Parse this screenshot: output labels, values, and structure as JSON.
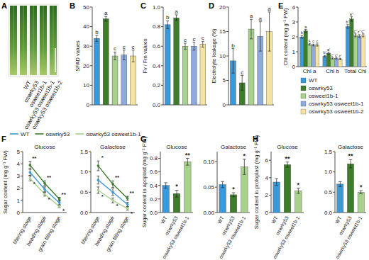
{
  "chart_data": [
    {
      "panel": "A",
      "type": "image",
      "categories": [
        "WT",
        "oswrky53",
        "osweet1b-1",
        "oswrky53 osweet1b-1",
        "oswrky53 osweet1b-2"
      ]
    },
    {
      "panel": "B",
      "type": "bar",
      "ylabel": "SPAD values",
      "values": [
        34,
        44,
        25,
        25.5,
        25
      ],
      "errors": [
        1.5,
        1.2,
        2,
        2.5,
        3
      ],
      "colors": [
        "#3a9ad9",
        "#3e7d2b",
        "#a9d18e",
        "#8faadc",
        "#f4e3a1"
      ],
      "letters": [
        "b",
        "a",
        "c",
        "c",
        "c"
      ],
      "ylim": [
        0,
        50
      ],
      "yticks": [
        0,
        10,
        20,
        30,
        40,
        50
      ],
      "tick_labels": "y"
    },
    {
      "panel": "C",
      "type": "bar",
      "ylabel": "Fv / Fm values",
      "values": [
        0.82,
        0.89,
        0.6,
        0.6,
        0.62
      ],
      "errors": [
        0.04,
        0.03,
        0.03,
        0.04,
        0.03
      ],
      "colors": [
        "#3a9ad9",
        "#3e7d2b",
        "#a9d18e",
        "#8faadc",
        "#f4e3a1"
      ],
      "letters": [
        "b",
        "a",
        "c",
        "c",
        "c"
      ],
      "ylim": [
        0,
        1
      ],
      "yticks": [
        {
          "value": 0,
          "label": "0.0"
        },
        0.2,
        0.4,
        0.6,
        0.8,
        {
          "value": 1,
          "label": "1.0"
        }
      ],
      "tick_labels": "y"
    },
    {
      "panel": "D",
      "type": "bar",
      "ylabel": "Electrolyte leakage (%)",
      "values": [
        9,
        4.5,
        15.5,
        14,
        15
      ],
      "errors": [
        2.5,
        1.5,
        2,
        3,
        4
      ],
      "colors": [
        "#3a9ad9",
        "#3e7d2b",
        "#a9d18e",
        "#8faadc",
        "#f4e3a1"
      ],
      "letters": [
        "b",
        "c",
        "a",
        "a",
        "a"
      ],
      "ylim": [
        0,
        20
      ],
      "yticks": [
        0,
        5,
        10,
        15,
        20
      ],
      "tick_labels": "y"
    },
    {
      "panel": "E",
      "type": "bar",
      "ylabel": "Chl content (mg g⁻¹ FW)",
      "categories": [
        "Chl a",
        "Chl b",
        "Total Chl"
      ],
      "series": [
        {
          "name": "WT",
          "color": "#3a9ad9",
          "values": [
            2.0,
            0.7,
            2.7
          ],
          "errors": [
            0.08,
            0.05,
            0.12
          ],
          "letters": [
            "b",
            "b'",
            "b''"
          ]
        },
        {
          "name": "oswrky53",
          "color": "#3e7d2b",
          "values": [
            2.4,
            0.9,
            3.2
          ],
          "errors": [
            0.1,
            0.06,
            0.15
          ],
          "letters": [
            "a",
            "a'",
            "a''"
          ]
        },
        {
          "name": "osweet1b-1",
          "color": "#a9d18e",
          "values": [
            1.5,
            0.55,
            2.1
          ],
          "errors": [
            0.06,
            0.04,
            0.1
          ],
          "letters": [
            "c",
            "c'",
            "c''"
          ]
        },
        {
          "name": "oswrky53 osweet1b-1",
          "color": "#8faadc",
          "values": [
            1.45,
            0.55,
            2.05
          ],
          "errors": [
            0.06,
            0.04,
            0.1
          ],
          "letters": [
            "c",
            "c'",
            "c''"
          ]
        },
        {
          "name": "oswrky53 osweet1b-2",
          "color": "#f4e3a1",
          "values": [
            1.45,
            0.5,
            2.1
          ],
          "errors": [
            0.07,
            0.04,
            0.1
          ],
          "letters": [
            "c",
            "c'",
            "c''"
          ]
        }
      ],
      "ylim": [
        0,
        4
      ],
      "yticks": [
        0,
        1,
        2,
        3,
        4
      ],
      "legend": "bottom"
    },
    {
      "panel": "F",
      "type": "line",
      "title": "Glucose",
      "ylabel": "Sugar content (mg g⁻¹ FW)",
      "categories": [
        "tillering stage",
        "heading stage",
        "grain filling stage"
      ],
      "series": [
        {
          "name": "WT",
          "color": "#3a9ad9",
          "values": [
            3.3,
            1.9,
            0.8
          ],
          "errors": [
            0.25,
            0.2,
            0.15
          ]
        },
        {
          "name": "oswrky53",
          "color": "#3e7d2b",
          "values": [
            3.9,
            2.4,
            1.1
          ],
          "errors": [
            0.3,
            0.2,
            0.15
          ],
          "significance": [
            "**",
            "**",
            "**"
          ]
        },
        {
          "name": "oswrky53 osweet1b-1",
          "color": "#a9d18e",
          "values": [
            2.8,
            1.5,
            0.5
          ],
          "errors": [
            0.2,
            0.15,
            0.1
          ],
          "significance": [
            "*",
            "*",
            "*"
          ]
        }
      ],
      "ylim": [
        0,
        5
      ],
      "yticks": [
        0,
        1,
        2,
        3,
        4,
        5
      ],
      "marker": "circle",
      "legend": "top"
    },
    {
      "type": "line",
      "title": "Galactose",
      "categories": [
        "tillering stage",
        "heading stage",
        "grain filling stage"
      ],
      "series": [
        {
          "color": "#3a9ad9",
          "values": [
            0.8,
            0.5,
            0.2
          ],
          "errors": [
            0.1,
            0.08,
            0.05
          ]
        },
        {
          "color": "#3e7d2b",
          "values": [
            1.15,
            0.7,
            0.35
          ],
          "errors": [
            0.12,
            0.08,
            0.05
          ],
          "significance": [
            "*",
            "**",
            "**"
          ]
        },
        {
          "color": "#a9d18e",
          "values": [
            0.55,
            0.3,
            0.1
          ],
          "errors": [
            0.08,
            0.06,
            0.04
          ],
          "significance": [
            "*",
            "*",
            "*"
          ]
        }
      ],
      "ylim": [
        0,
        1.5
      ],
      "yticks": [
        {
          "value": 0,
          "label": "0.0"
        },
        0.5,
        {
          "value": 1,
          "label": "1.0"
        },
        1.5
      ],
      "marker": "circle"
    },
    {
      "panel": "G",
      "type": "bar",
      "title": "Glucose",
      "ylabel": "Sugar content in apoplast (mg g⁻¹ FW)",
      "categories": [
        "WT",
        "oswrky53",
        "oswrky53 osweet1b-1"
      ],
      "values": [
        0.4,
        0.28,
        0.75
      ],
      "errors": [
        0.04,
        0.05,
        0.05
      ],
      "colors": [
        "#3a9ad9",
        "#3e7d2b",
        "#a9d18e"
      ],
      "significance": [
        null,
        "*",
        "**"
      ],
      "ylim": [
        0,
        0.9
      ],
      "yticks": [
        {
          "value": 0,
          "label": "0.0"
        },
        0.2,
        0.4,
        0.6,
        0.8
      ]
    },
    {
      "type": "bar",
      "title": "Galactose",
      "categories": [
        "WT",
        "oswrky53",
        "oswrky53 osweet1b-1"
      ],
      "values": [
        0.055,
        0.035,
        0.09
      ],
      "errors": [
        0.006,
        0.004,
        0.015
      ],
      "colors": [
        "#3a9ad9",
        "#3e7d2b",
        "#a9d18e"
      ],
      "significance": [
        null,
        "*",
        "*"
      ],
      "ylim": [
        0,
        0.12
      ],
      "yticks": [
        {
          "value": 0,
          "label": "0.00"
        },
        0.05,
        {
          "value": 0.1,
          "label": "0.10"
        }
      ]
    },
    {
      "panel": "H",
      "type": "bar",
      "title": "Glucose",
      "ylabel": "Sugar content in protoplast (mg g⁻¹ FW)",
      "categories": [
        "WT",
        "oswrky53",
        "oswrky53 osweet1b-1"
      ],
      "values": [
        3.5,
        5.5,
        2.5
      ],
      "errors": [
        0.4,
        0.3,
        0.3
      ],
      "colors": [
        "#3a9ad9",
        "#3e7d2b",
        "#a9d18e"
      ],
      "significance": [
        null,
        "**",
        "*"
      ],
      "ylim": [
        0,
        7
      ],
      "yticks": [
        0,
        2,
        4,
        6
      ]
    },
    {
      "type": "bar",
      "title": "Galactose",
      "categories": [
        "WT",
        "oswrky53",
        "oswrky53 osweet1b-1"
      ],
      "values": [
        0.7,
        1.2,
        0.5
      ],
      "errors": [
        0.06,
        0.1,
        0.04
      ],
      "colors": [
        "#3a9ad9",
        "#3e7d2b",
        "#a9d18e"
      ],
      "significance": [
        null,
        "**",
        "*"
      ],
      "ylim": [
        0,
        1.5
      ],
      "yticks": [
        {
          "value": 0,
          "label": "0.0"
        },
        0.5,
        {
          "value": 1,
          "label": "1.0"
        },
        1.5
      ]
    }
  ]
}
